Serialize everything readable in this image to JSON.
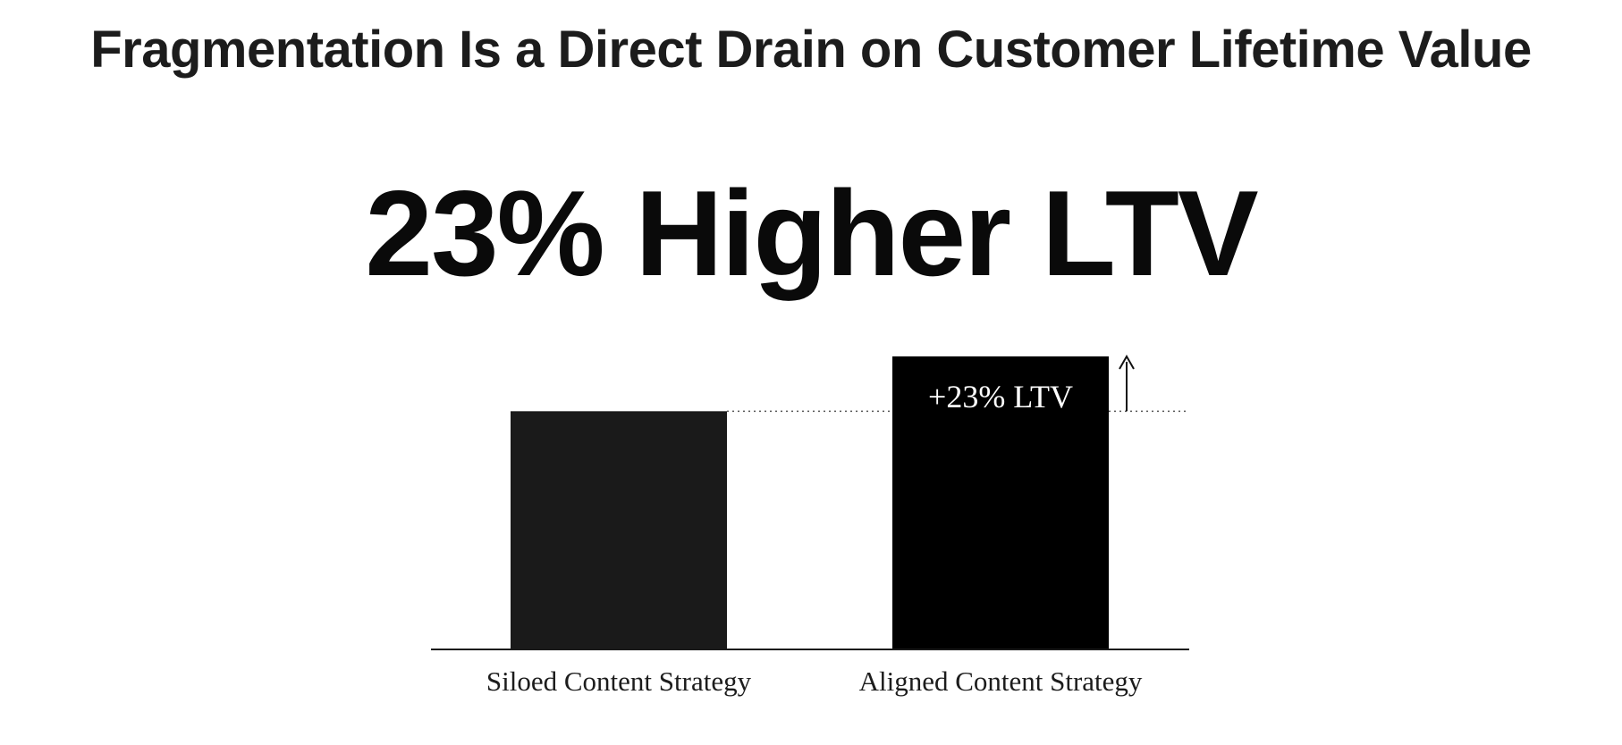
{
  "title": "Fragmentation Is a Direct Drain on Customer Lifetime Value",
  "headline": "23% Higher LTV",
  "colors": {
    "bar_siloed": "#1a1a1a",
    "bar_aligned": "#000000",
    "text": "#1c1c1c",
    "axis": "#1a1a1a"
  },
  "chart_data": {
    "type": "bar",
    "categories": [
      "Siloed Content Strategy",
      "Aligned Content Strategy"
    ],
    "values": [
      100,
      123
    ],
    "ylim": [
      0,
      123
    ],
    "grid": false,
    "legend": "none",
    "annotations": [
      {
        "category": "Aligned Content Strategy",
        "text": "+23% LTV",
        "placement": "inside-top"
      }
    ],
    "reference_line": {
      "value": 100,
      "style": "dotted"
    },
    "arrow": {
      "from": 100,
      "to": 123
    }
  }
}
